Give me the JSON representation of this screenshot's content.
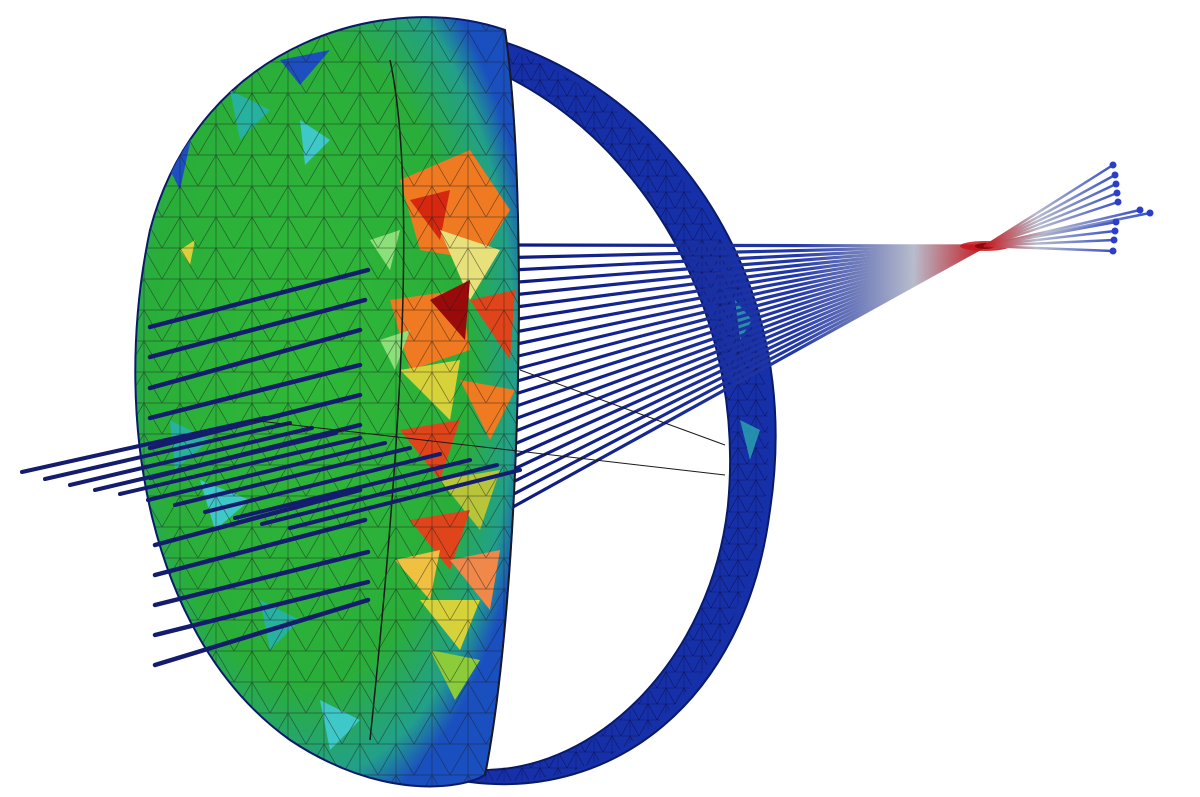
{
  "figure": {
    "subject": "ray-trace-through-lens",
    "colors": {
      "background": "#ffffff",
      "ray": "#0d1a80",
      "ray_dark": "#141c6e",
      "focus": "#c4161c",
      "rim": "#1530a8",
      "rim_edge": "#0a1a6a",
      "mesh_green": "#2cb234",
      "mesh_teal": "#27b2a0",
      "mesh_cyan": "#3fc8c8",
      "mesh_blue": "#1d4fc0",
      "mesh_yellow": "#d8d23a",
      "mesh_orange": "#f07a22",
      "mesh_red": "#d6280f",
      "mesh_darkred": "#9a0a0a",
      "mesh_line": "#1a1a1a"
    },
    "icons": [
      "lens-mesh-icon",
      "lens-rim-icon",
      "ray-bundle-icon",
      "focal-point-icon"
    ]
  }
}
